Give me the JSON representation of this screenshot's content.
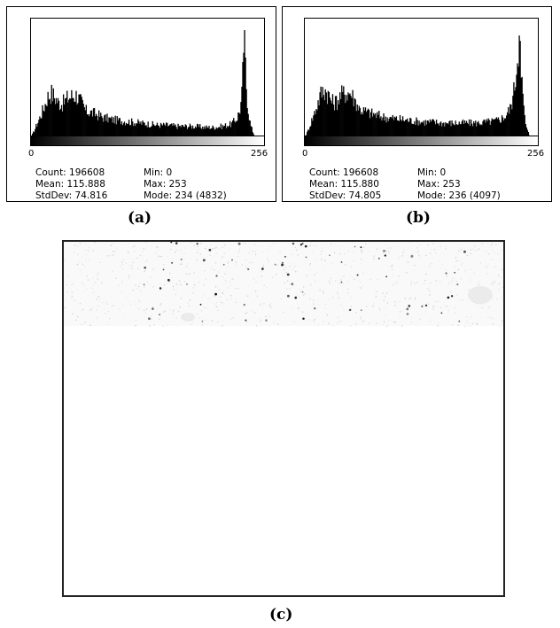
{
  "chart_data": [
    {
      "type": "histogram",
      "panel_label": "(a)",
      "x_range": [
        0,
        256
      ],
      "tick_labels": [
        "0",
        "256"
      ],
      "stats": {
        "count": "Count: 196608",
        "mean": "Mean: 115.888",
        "stddev": "StdDev: 74.816",
        "min": "Min: 0",
        "max": "Max: 253",
        "mode": "Mode: 234 (4832)"
      },
      "profile": [
        [
          0,
          0.01
        ],
        [
          3,
          0.06
        ],
        [
          6,
          0.12
        ],
        [
          10,
          0.2
        ],
        [
          14,
          0.28
        ],
        [
          18,
          0.38
        ],
        [
          22,
          0.42
        ],
        [
          26,
          0.38
        ],
        [
          30,
          0.33
        ],
        [
          35,
          0.32
        ],
        [
          40,
          0.37
        ],
        [
          45,
          0.39
        ],
        [
          50,
          0.4
        ],
        [
          55,
          0.33
        ],
        [
          60,
          0.25
        ],
        [
          65,
          0.24
        ],
        [
          72,
          0.22
        ],
        [
          80,
          0.19
        ],
        [
          90,
          0.17
        ],
        [
          100,
          0.16
        ],
        [
          110,
          0.15
        ],
        [
          120,
          0.14
        ],
        [
          130,
          0.13
        ],
        [
          140,
          0.12
        ],
        [
          150,
          0.12
        ],
        [
          160,
          0.11
        ],
        [
          170,
          0.11
        ],
        [
          180,
          0.11
        ],
        [
          190,
          0.1
        ],
        [
          200,
          0.1
        ],
        [
          210,
          0.11
        ],
        [
          220,
          0.13
        ],
        [
          226,
          0.18
        ],
        [
          230,
          0.28
        ],
        [
          232,
          0.45
        ],
        [
          234,
          1.0
        ],
        [
          236,
          0.55
        ],
        [
          238,
          0.3
        ],
        [
          241,
          0.12
        ],
        [
          245,
          0.03
        ],
        [
          253,
          0.0
        ],
        [
          256,
          0.0
        ]
      ]
    },
    {
      "type": "histogram",
      "panel_label": "(b)",
      "x_range": [
        0,
        256
      ],
      "tick_labels": [
        "0",
        "256"
      ],
      "stats": {
        "count": "Count: 196608",
        "mean": "Mean: 115.880",
        "stddev": "StdDev: 74.805",
        "min": "Min: 0",
        "max": "Max: 253",
        "mode": "Mode: 236 (4097)"
      },
      "profile": [
        [
          0,
          0.01
        ],
        [
          3,
          0.06
        ],
        [
          6,
          0.13
        ],
        [
          10,
          0.22
        ],
        [
          14,
          0.32
        ],
        [
          18,
          0.42
        ],
        [
          22,
          0.45
        ],
        [
          26,
          0.4
        ],
        [
          30,
          0.33
        ],
        [
          35,
          0.34
        ],
        [
          40,
          0.4
        ],
        [
          45,
          0.42
        ],
        [
          50,
          0.42
        ],
        [
          55,
          0.35
        ],
        [
          60,
          0.27
        ],
        [
          65,
          0.25
        ],
        [
          72,
          0.23
        ],
        [
          80,
          0.21
        ],
        [
          90,
          0.19
        ],
        [
          100,
          0.18
        ],
        [
          110,
          0.17
        ],
        [
          120,
          0.16
        ],
        [
          130,
          0.15
        ],
        [
          140,
          0.15
        ],
        [
          150,
          0.14
        ],
        [
          160,
          0.14
        ],
        [
          170,
          0.14
        ],
        [
          180,
          0.14
        ],
        [
          190,
          0.14
        ],
        [
          200,
          0.15
        ],
        [
          210,
          0.16
        ],
        [
          220,
          0.2
        ],
        [
          226,
          0.28
        ],
        [
          230,
          0.45
        ],
        [
          233,
          0.7
        ],
        [
          236,
          1.0
        ],
        [
          238,
          0.6
        ],
        [
          240,
          0.3
        ],
        [
          243,
          0.1
        ],
        [
          247,
          0.02
        ],
        [
          253,
          0.0
        ],
        [
          256,
          0.0
        ]
      ]
    }
  ],
  "figure_c": {
    "panel_label": "(c)"
  }
}
